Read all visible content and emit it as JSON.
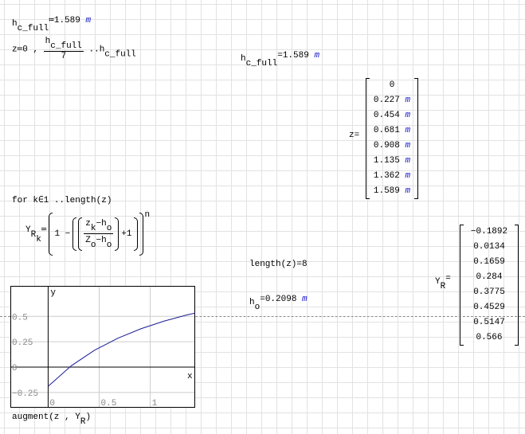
{
  "def_hc": {
    "name": "h",
    "sub": "c_full",
    "op": "≔",
    "value": "1.589",
    "unit": "m"
  },
  "def_z": {
    "lhs": "z",
    "op": "≔",
    "first": "0 ,",
    "num": "h",
    "num_sub": "c_full",
    "den": "7",
    "range": "..",
    "end": "h",
    "end_sub": "c_full"
  },
  "eval_hc": {
    "name": "h",
    "sub": "c_full",
    "op": "=",
    "value": "1.589",
    "unit": "m"
  },
  "z_matrix": {
    "label": "z",
    "op": "=",
    "values": [
      "0",
      "0.227",
      "0.454",
      "0.681",
      "0.908",
      "1.135",
      "1.362",
      "1.589"
    ],
    "unit": "m"
  },
  "loop": {
    "header": "for k∈1 ..length(z)",
    "lhs": "Y",
    "lhs_sub": "R",
    "lhs_sub2": "k",
    "op": "≔",
    "expr_a": "1 −",
    "num": "z",
    "num_sub": "k",
    "num_rest": "−h",
    "num_sub2": "o",
    "den": "Z",
    "den_sub": "o",
    "den_rest": "−h",
    "den_sub2": "o",
    "plus": "+1",
    "exp": "n"
  },
  "length_eval": "length(z)=8",
  "ho_eval": {
    "name": "h",
    "sub": "o",
    "op": "=",
    "value": "0.2098",
    "unit": "m"
  },
  "yr_matrix": {
    "label": "Y",
    "sub": "R",
    "op": "=",
    "values": [
      "−0.1892",
      "0.0134",
      "0.1659",
      "0.284",
      "0.3775",
      "0.4529",
      "0.5147",
      "0.566"
    ]
  },
  "chart_data": {
    "type": "line",
    "xlabel": "x",
    "ylabel": "y",
    "xlim": [
      -0.37,
      1.44
    ],
    "ylim": [
      -0.4,
      0.8
    ],
    "xticks": [
      "0",
      "0.5",
      "1"
    ],
    "yticks": [
      "0.5",
      "0.25",
      "0",
      "−0.25"
    ],
    "grid": true,
    "line_color": "#1a1a99",
    "x": [
      0,
      0.227,
      0.454,
      0.681,
      0.908,
      1.135,
      1.362,
      1.589
    ],
    "y": [
      -0.1892,
      0.0134,
      0.1659,
      0.284,
      0.3775,
      0.4529,
      0.5147,
      0.566
    ],
    "caption": "augment(z , Y",
    "caption_sub": "R",
    "caption_end": ")"
  }
}
